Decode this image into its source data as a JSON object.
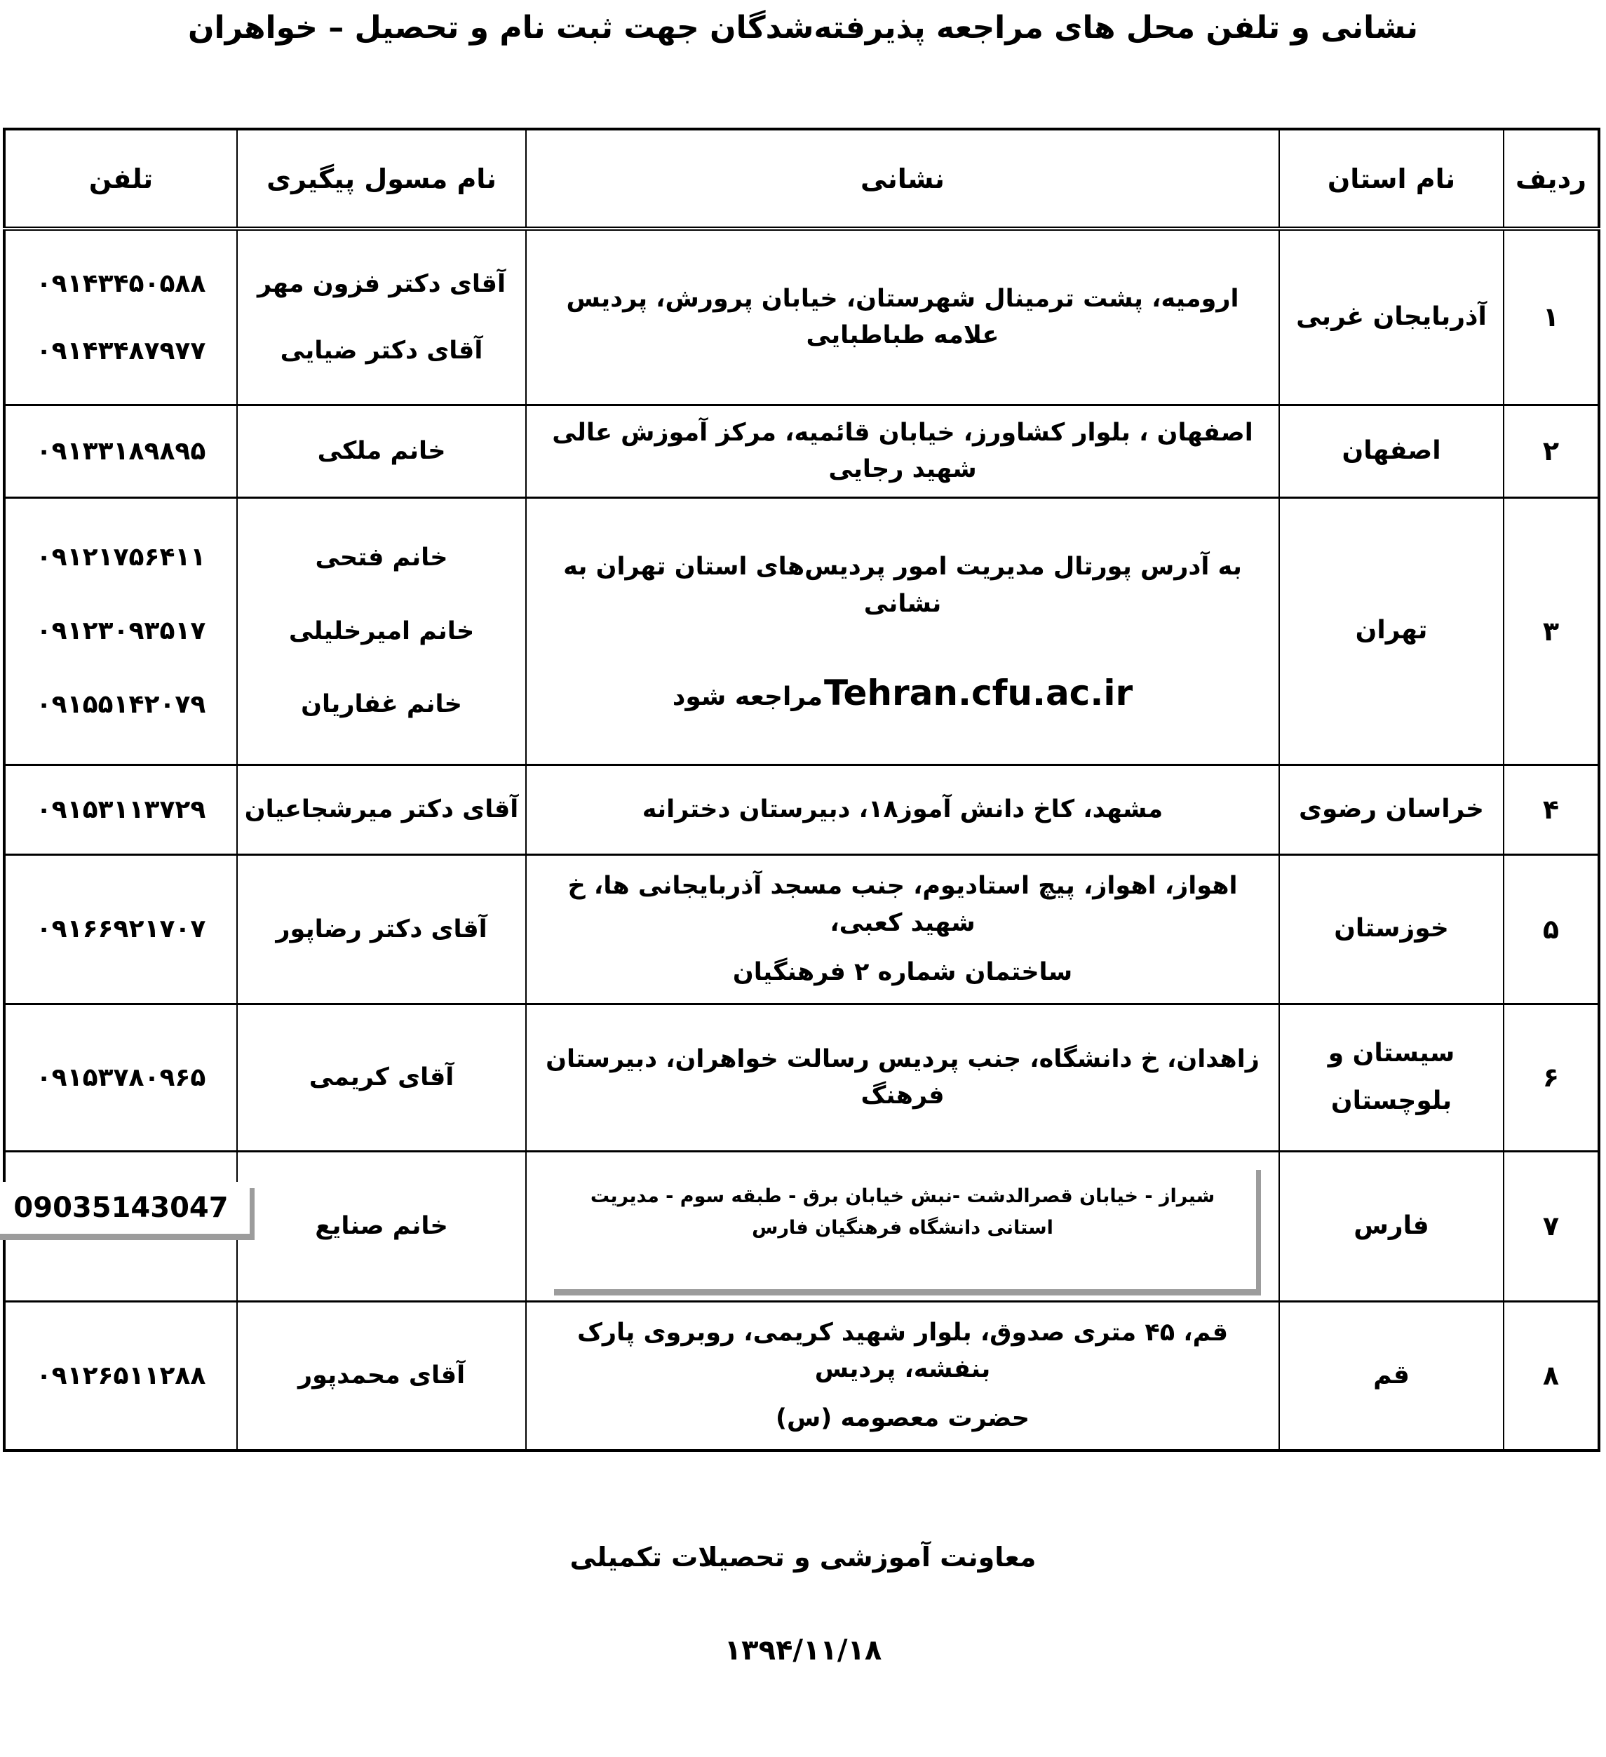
{
  "title": "نشانی و تلفن محل های مراجعه پذیرفته‌شدگان جهت ثبت نام و تحصیل – خواهران",
  "table": {
    "headers": {
      "row": "ردیف",
      "province": "نام استان",
      "address": "نشانی",
      "contact": "نام مسول پیگیری",
      "phone": "تلفن"
    },
    "rows": [
      {
        "index": "۱",
        "province": "آذربایجان غربی",
        "address_lines": [
          "ارومیه، پشت ترمینال شهرستان، خیابان پرورش، پردیس علامه طباطبایی"
        ],
        "contacts": [
          "آقای دکتر فزون مهر",
          "آقای دکتر ضیایی"
        ],
        "phones": [
          "۰۹۱۴۳۴۵۰۵۸۸",
          "۰۹۱۴۳۴۸۷۹۷۷"
        ]
      },
      {
        "index": "۲",
        "province": "اصفهان",
        "address_lines": [
          "اصفهان ، بلوار کشاورز، خیابان قائمیه، مرکز آموزش عالی شهید رجایی"
        ],
        "contacts": [
          "خانم ملکی"
        ],
        "phones": [
          "۰۹۱۳۳۱۸۹۸۹۵"
        ]
      },
      {
        "index": "۳",
        "province": "تهران",
        "address_style": "url",
        "address_lines": [
          "به آدرس پورتال مدیریت امور پردیس‌های استان تهران به نشانی"
        ],
        "portal_url": "Tehran.cfu.ac.ir",
        "url_suffix": "مراجعه شود",
        "contacts": [
          "خانم فتحی",
          "خانم امیرخلیلی",
          "خانم غفاریان"
        ],
        "phones": [
          "۰۹۱۲۱۷۵۶۴۱۱",
          "۰۹۱۲۳۰۹۳۵۱۷",
          "۰۹۱۵۵۱۴۲۰۷۹"
        ]
      },
      {
        "index": "۴",
        "province": "خراسان رضوی",
        "address_lines": [
          "مشهد، کاخ دانش آموز۱۸، دبیرستان دخترانه"
        ],
        "contacts": [
          "آقای دکتر میرشجاعیان"
        ],
        "phones": [
          "۰۹۱۵۳۱۱۳۷۲۹"
        ]
      },
      {
        "index": "۵",
        "province": "خوزستان",
        "address_lines": [
          "اهواز، اهواز، پیچ استادیوم، جنب مسجد آذربایجانی ها، خ شهید کعبی،",
          "ساختمان شماره ۲ فرهنگیان"
        ],
        "contacts": [
          "آقای دکتر رضاپور"
        ],
        "phones": [
          "۰۹۱۶۶۹۲۱۷۰۷"
        ]
      },
      {
        "index": "۶",
        "province": "سیستان و\nبلوچستان",
        "address_lines": [
          "زاهدان، خ دانشگاه، جنب پردیس رسالت خواهران، دبیرستان فرهنگ"
        ],
        "contacts": [
          "آقای کریمی"
        ],
        "phones": [
          "۰۹۱۵۳۷۸۰۹۶۵"
        ]
      },
      {
        "index": "۷",
        "province": "فارس",
        "address_style": "boxed",
        "address_lines": [
          "شیراز - خیابان قصرالدشت -نبش خیابان برق - طبقه سوم - مدیریت استانی دانشگاه فرهنگیان فارس"
        ],
        "contacts": [
          "خانم صنایع"
        ],
        "phone_style": "boxed",
        "phones": [
          "09035143047"
        ]
      },
      {
        "index": "۸",
        "province": "قم",
        "address_lines": [
          "قم، ۴۵ متری صدوق، بلوار شهید کریمی، روبروی پارک بنفشه، پردیس",
          "حضرت معصومه (س)"
        ],
        "contacts": [
          "آقای محمدپور"
        ],
        "phones": [
          "۰۹۱۲۶۵۱۱۲۸۸"
        ]
      }
    ]
  },
  "footer": {
    "line1": "معاونت آموزشی و تحصیلات تکمیلی",
    "line2": "۱۳۹۴/۱۱/۱۸"
  }
}
